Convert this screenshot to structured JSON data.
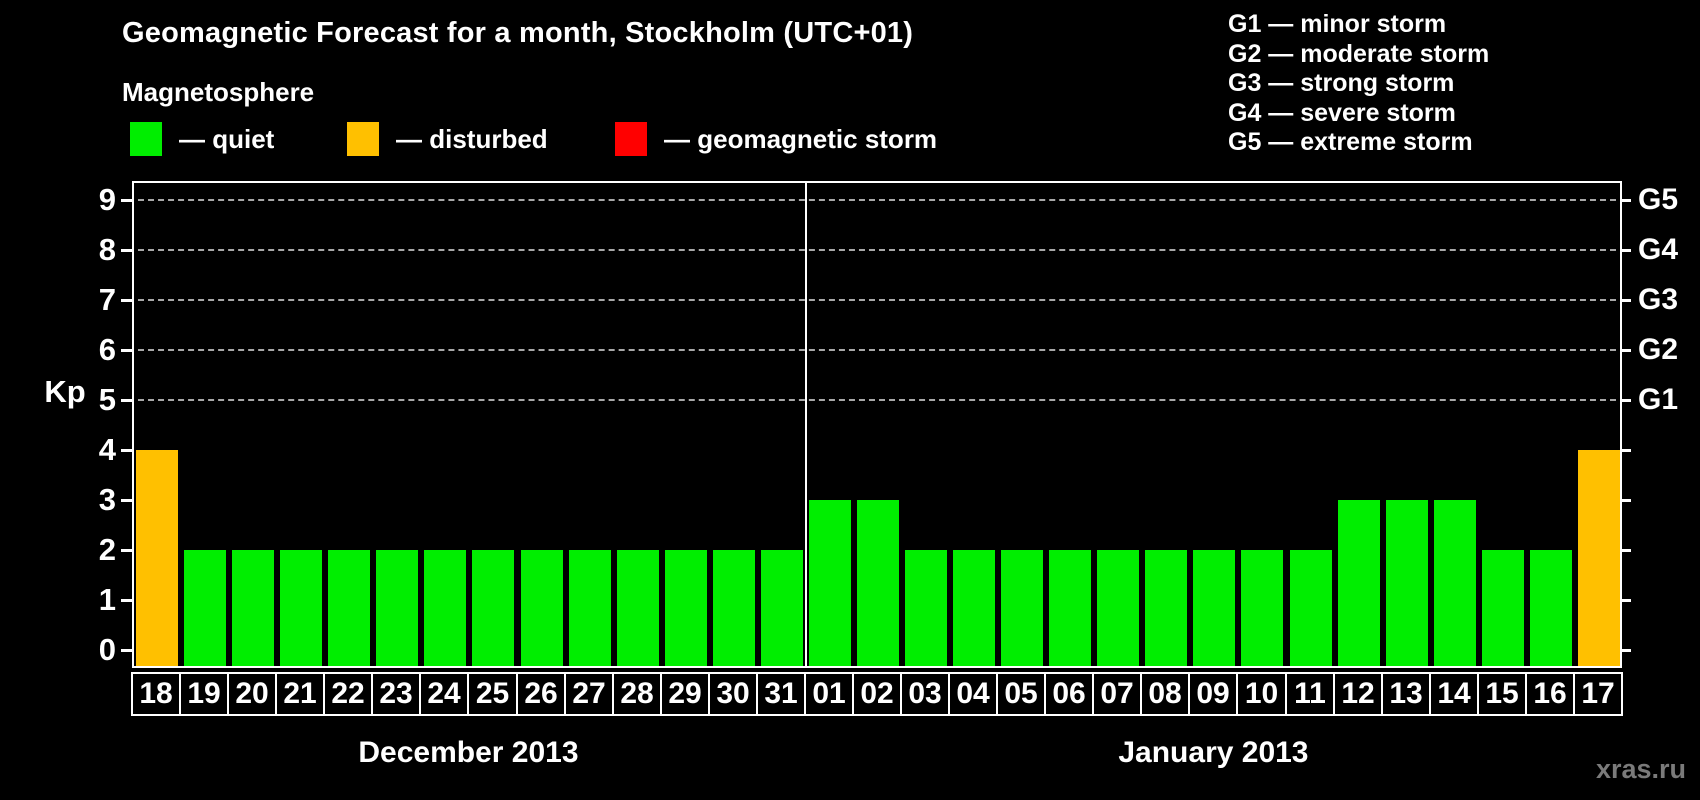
{
  "header": {
    "title": "Geomagnetic Forecast for a month, Stockholm (UTC+01)",
    "subtitle": "Magnetosphere"
  },
  "magnetosphere_legend": [
    {
      "state": "quiet",
      "color": "#00ee00",
      "label": "— quiet"
    },
    {
      "state": "disturbed",
      "color": "#ffc000",
      "label": "— disturbed"
    },
    {
      "state": "storm",
      "color": "#ff0000",
      "label": "— geomagnetic storm"
    }
  ],
  "storm_scale_legend": [
    {
      "code": "G1",
      "label": "G1 — minor storm"
    },
    {
      "code": "G2",
      "label": "G2 — moderate storm"
    },
    {
      "code": "G3",
      "label": "G3 — strong storm"
    },
    {
      "code": "G4",
      "label": "G4 — severe storm"
    },
    {
      "code": "G5",
      "label": "G5 — extreme storm"
    }
  ],
  "watermark": "xras.ru",
  "chart_data": {
    "type": "bar",
    "ylabel": "Kp",
    "ylim": [
      0,
      9
    ],
    "yticks": [
      0,
      1,
      2,
      3,
      4,
      5,
      6,
      7,
      8,
      9
    ],
    "gridlines": [
      5,
      6,
      7,
      8,
      9
    ],
    "grid_style": "horizontal dashed gray lines at Kp 5–9 only",
    "right_axis": [
      {
        "kp": 5,
        "label": "G1"
      },
      {
        "kp": 6,
        "label": "G2"
      },
      {
        "kp": 7,
        "label": "G3"
      },
      {
        "kp": 8,
        "label": "G4"
      },
      {
        "kp": 9,
        "label": "G5"
      }
    ],
    "bar_colors": {
      "quiet": "#00ee00",
      "disturbed": "#ffc000",
      "storm": "#ff0000"
    },
    "groups": [
      {
        "label": "December 2013",
        "bars": [
          {
            "day": "18",
            "kp": 4,
            "state": "disturbed"
          },
          {
            "day": "19",
            "kp": 2,
            "state": "quiet"
          },
          {
            "day": "20",
            "kp": 2,
            "state": "quiet"
          },
          {
            "day": "21",
            "kp": 2,
            "state": "quiet"
          },
          {
            "day": "22",
            "kp": 2,
            "state": "quiet"
          },
          {
            "day": "23",
            "kp": 2,
            "state": "quiet"
          },
          {
            "day": "24",
            "kp": 2,
            "state": "quiet"
          },
          {
            "day": "25",
            "kp": 2,
            "state": "quiet"
          },
          {
            "day": "26",
            "kp": 2,
            "state": "quiet"
          },
          {
            "day": "27",
            "kp": 2,
            "state": "quiet"
          },
          {
            "day": "28",
            "kp": 2,
            "state": "quiet"
          },
          {
            "day": "29",
            "kp": 2,
            "state": "quiet"
          },
          {
            "day": "30",
            "kp": 2,
            "state": "quiet"
          },
          {
            "day": "31",
            "kp": 2,
            "state": "quiet"
          }
        ]
      },
      {
        "label": "January 2013",
        "bars": [
          {
            "day": "01",
            "kp": 3,
            "state": "quiet"
          },
          {
            "day": "02",
            "kp": 3,
            "state": "quiet"
          },
          {
            "day": "03",
            "kp": 2,
            "state": "quiet"
          },
          {
            "day": "04",
            "kp": 2,
            "state": "quiet"
          },
          {
            "day": "05",
            "kp": 2,
            "state": "quiet"
          },
          {
            "day": "06",
            "kp": 2,
            "state": "quiet"
          },
          {
            "day": "07",
            "kp": 2,
            "state": "quiet"
          },
          {
            "day": "08",
            "kp": 2,
            "state": "quiet"
          },
          {
            "day": "09",
            "kp": 2,
            "state": "quiet"
          },
          {
            "day": "10",
            "kp": 2,
            "state": "quiet"
          },
          {
            "day": "11",
            "kp": 2,
            "state": "quiet"
          },
          {
            "day": "12",
            "kp": 3,
            "state": "quiet"
          },
          {
            "day": "13",
            "kp": 3,
            "state": "quiet"
          },
          {
            "day": "14",
            "kp": 3,
            "state": "quiet"
          },
          {
            "day": "15",
            "kp": 2,
            "state": "quiet"
          },
          {
            "day": "16",
            "kp": 2,
            "state": "quiet"
          },
          {
            "day": "17",
            "kp": 4,
            "state": "disturbed"
          }
        ]
      }
    ]
  }
}
